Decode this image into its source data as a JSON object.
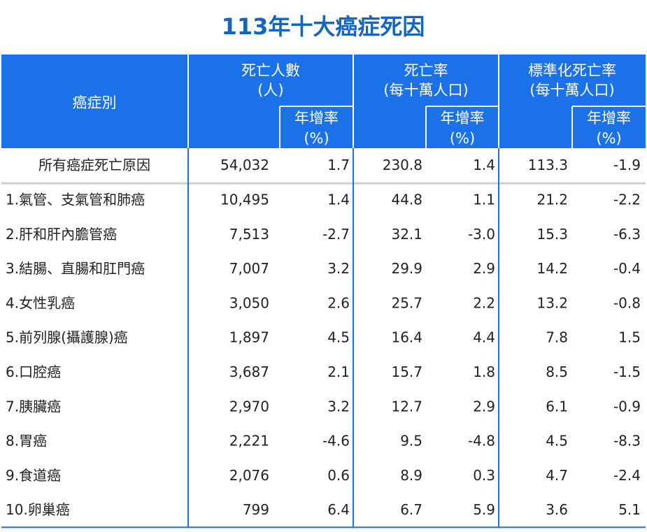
{
  "title": "113年十大癌症死因",
  "table": {
    "header": {
      "row_label": "癌症別",
      "groups": [
        {
          "title": "死亡人數",
          "unit": "(人)",
          "sub": "年增率",
          "sub_unit": "(%)"
        },
        {
          "title": "死亡率",
          "unit": "(每十萬人口)",
          "sub": "年增率",
          "sub_unit": "(%)"
        },
        {
          "title": "標準化死亡率",
          "unit": "(每十萬人口)",
          "sub": "年增率",
          "sub_unit": "(%)"
        }
      ]
    },
    "rows": [
      [
        "所有癌症死亡原因",
        "54,032",
        "1.7",
        "230.8",
        "1.4",
        "113.3",
        "-1.9"
      ],
      [
        "1.氣管、支氣管和肺癌",
        "10,495",
        "1.4",
        "44.8",
        "1.1",
        "21.2",
        "-2.2"
      ],
      [
        "2.肝和肝內膽管癌",
        "7,513",
        "-2.7",
        "32.1",
        "-3.0",
        "15.3",
        "-6.3"
      ],
      [
        "3.結腸、直腸和肛門癌",
        "7,007",
        "3.2",
        "29.9",
        "2.9",
        "14.2",
        "-0.4"
      ],
      [
        "4.女性乳癌",
        "3,050",
        "2.6",
        "25.7",
        "2.2",
        "13.2",
        "-0.8"
      ],
      [
        "5.前列腺(攝護腺)癌",
        "1,897",
        "4.5",
        "16.4",
        "4.4",
        "7.8",
        "1.5"
      ],
      [
        "6.口腔癌",
        "3,687",
        "2.1",
        "15.7",
        "1.8",
        "8.5",
        "-1.5"
      ],
      [
        "7.胰臟癌",
        "2,970",
        "3.2",
        "12.7",
        "2.9",
        "6.1",
        "-0.9"
      ],
      [
        "8.胃癌",
        "2,221",
        "-4.6",
        "9.5",
        "-4.8",
        "4.5",
        "-8.3"
      ],
      [
        "9.食道癌",
        "2,076",
        "0.6",
        "8.9",
        "0.3",
        "4.7",
        "-2.4"
      ],
      [
        "10.卵巢癌",
        "799",
        "6.4",
        "6.7",
        "5.9",
        "3.6",
        "5.1"
      ]
    ]
  }
}
